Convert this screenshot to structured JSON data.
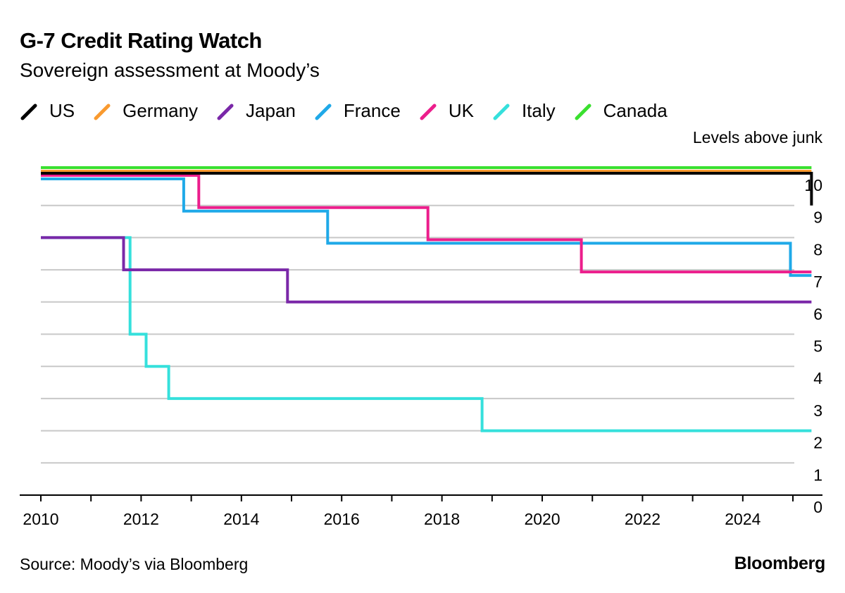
{
  "chart_data": {
    "type": "line",
    "step": true,
    "title": "G-7 Credit Rating Watch",
    "subtitle": "Sovereign assessment at Moody’s",
    "ylabel": "Levels above junk",
    "xlabel": "",
    "xlim": [
      2010,
      2025.8
    ],
    "ylim": [
      0,
      10
    ],
    "x_ticks": [
      2010,
      2012,
      2014,
      2016,
      2018,
      2020,
      2022,
      2024
    ],
    "y_ticks": [
      0,
      1,
      2,
      3,
      4,
      5,
      6,
      7,
      8,
      9,
      10
    ],
    "grid": "horizontal",
    "legend_position": "top",
    "series": [
      {
        "name": "US",
        "color": "#000000",
        "points": [
          [
            2010.0,
            10
          ],
          [
            2025.37,
            10
          ],
          [
            2025.37,
            9
          ]
        ]
      },
      {
        "name": "Germany",
        "color": "#f99a2f",
        "points": [
          [
            2010.0,
            10
          ],
          [
            2025.37,
            10
          ]
        ]
      },
      {
        "name": "Japan",
        "color": "#7a27a8",
        "points": [
          [
            2010.0,
            8
          ],
          [
            2011.65,
            8
          ],
          [
            2011.65,
            7
          ],
          [
            2014.92,
            7
          ],
          [
            2014.92,
            6
          ],
          [
            2025.37,
            6
          ]
        ]
      },
      {
        "name": "France",
        "color": "#1fa9e8",
        "points": [
          [
            2010.0,
            10
          ],
          [
            2012.85,
            10
          ],
          [
            2012.85,
            9
          ],
          [
            2015.72,
            9
          ],
          [
            2015.72,
            8
          ],
          [
            2024.95,
            8
          ],
          [
            2024.95,
            7
          ],
          [
            2025.37,
            7
          ]
        ]
      },
      {
        "name": "UK",
        "color": "#ec1e8c",
        "points": [
          [
            2010.0,
            10
          ],
          [
            2013.15,
            10
          ],
          [
            2013.15,
            9
          ],
          [
            2017.72,
            9
          ],
          [
            2017.72,
            8
          ],
          [
            2020.78,
            8
          ],
          [
            2020.78,
            7
          ],
          [
            2025.37,
            7
          ]
        ]
      },
      {
        "name": "Italy",
        "color": "#35e0dc",
        "points": [
          [
            2010.0,
            8
          ],
          [
            2011.78,
            8
          ],
          [
            2011.78,
            5
          ],
          [
            2012.1,
            5
          ],
          [
            2012.1,
            4
          ],
          [
            2012.55,
            4
          ],
          [
            2012.55,
            3
          ],
          [
            2018.8,
            3
          ],
          [
            2018.8,
            2
          ],
          [
            2025.37,
            2
          ]
        ]
      },
      {
        "name": "Canada",
        "color": "#3ae02f",
        "points": [
          [
            2010.0,
            10
          ],
          [
            2025.37,
            10
          ]
        ]
      }
    ]
  },
  "footer": {
    "source": "Source: Moody’s via Bloomberg",
    "brand": "Bloomberg"
  }
}
